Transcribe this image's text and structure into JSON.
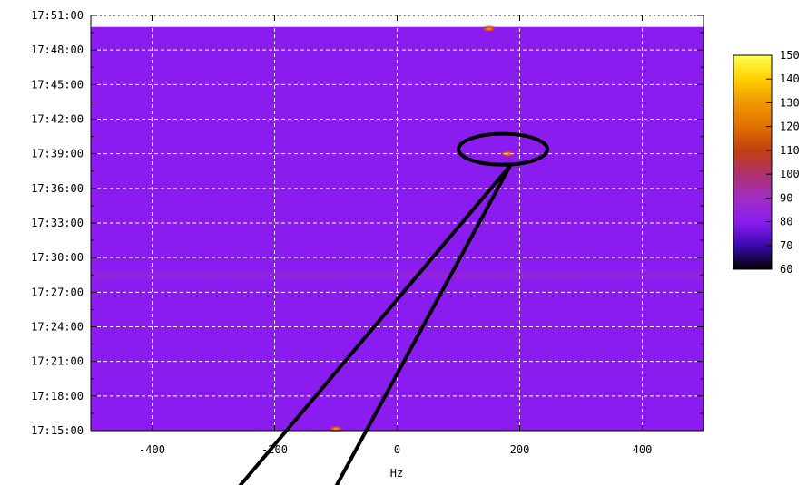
{
  "chart_data": {
    "type": "heatmap",
    "title": "",
    "xlabel": "Hz",
    "ylabel": "",
    "xlim": [
      -500,
      500
    ],
    "ylim": [
      "17:15:00",
      "17:51:00"
    ],
    "x_ticks": [
      -400,
      -200,
      0,
      200,
      400
    ],
    "x_tick_labels": [
      "-400",
      "-200",
      "0",
      "200",
      "400"
    ],
    "y_tick_labels": [
      "17:15:00",
      "17:18:00",
      "17:21:00",
      "17:24:00",
      "17:27:00",
      "17:30:00",
      "17:33:00",
      "17:36:00",
      "17:39:00",
      "17:42:00",
      "17:45:00",
      "17:48:00",
      "17:51:00"
    ],
    "grid": true,
    "background_level": 80,
    "data_end_time": "17:50:00",
    "features": [
      {
        "kind": "band",
        "time": "17:28:30",
        "level": 85
      },
      {
        "kind": "spot",
        "freq_hz": 150,
        "time": "17:50:00",
        "level": 115
      },
      {
        "kind": "spot",
        "freq_hz": 180,
        "time": "17:39:00",
        "level": 105
      },
      {
        "kind": "spot",
        "freq_hz": -100,
        "time": "17:15:00",
        "level": 115
      }
    ],
    "colorbar": {
      "min": 60,
      "max": 150,
      "ticks": [
        60,
        70,
        80,
        90,
        100,
        110,
        120,
        130,
        140,
        150
      ],
      "stops": [
        {
          "value": 60,
          "color": "#000000"
        },
        {
          "value": 70,
          "color": "#3a0ab0"
        },
        {
          "value": 80,
          "color": "#8a1cf0"
        },
        {
          "value": 90,
          "color": "#a02ec4"
        },
        {
          "value": 100,
          "color": "#b0306e"
        },
        {
          "value": 110,
          "color": "#c04010"
        },
        {
          "value": 120,
          "color": "#e07000"
        },
        {
          "value": 130,
          "color": "#f09800"
        },
        {
          "value": 140,
          "color": "#ffd000"
        },
        {
          "value": 150,
          "color": "#ffff50"
        }
      ]
    },
    "annotation": {
      "shape": "ellipse-with-pointer",
      "target_freq_hz": 180,
      "target_time": "17:39:00",
      "color": "#000000"
    }
  }
}
